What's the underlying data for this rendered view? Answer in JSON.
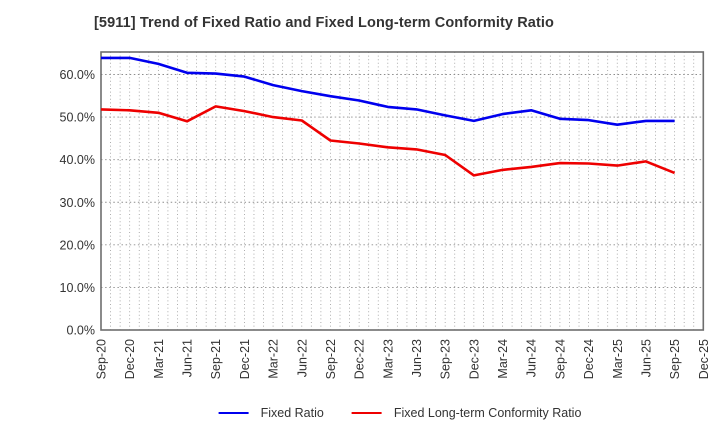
{
  "title": "[5911]  Trend of Fixed Ratio and Fixed Long-term Conformity Ratio",
  "legend": {
    "items": [
      {
        "label": "Fixed Ratio",
        "color": "#0000ee"
      },
      {
        "label": "Fixed Long-term Conformity Ratio",
        "color": "#ee0000"
      }
    ]
  },
  "chart_data": {
    "type": "line",
    "title": "[5911]  Trend of Fixed Ratio and Fixed Long-term Conformity Ratio",
    "categories": [
      "Sep-20",
      "Dec-20",
      "Mar-21",
      "Jun-21",
      "Sep-21",
      "Dec-21",
      "Mar-22",
      "Jun-22",
      "Sep-22",
      "Dec-22",
      "Mar-23",
      "Jun-23",
      "Sep-23",
      "Dec-23",
      "Mar-24",
      "Jun-24",
      "Sep-24",
      "Dec-24",
      "Mar-25",
      "Jun-25",
      "Sep-25",
      "Dec-25"
    ],
    "series": [
      {
        "name": "Fixed Ratio",
        "color": "#0000ee",
        "values": [
          63.9,
          63.9,
          62.5,
          60.4,
          60.2,
          59.5,
          57.5,
          56.1,
          54.9,
          53.9,
          52.4,
          51.8,
          50.4,
          49.1,
          50.7,
          51.6,
          49.6,
          49.3,
          48.2,
          49.1,
          49.1,
          null
        ]
      },
      {
        "name": "Fixed Long-term Conformity Ratio",
        "color": "#ee0000",
        "values": [
          51.8,
          51.6,
          51.0,
          49.0,
          52.5,
          51.4,
          50.0,
          49.2,
          44.5,
          43.8,
          42.9,
          42.4,
          41.1,
          36.3,
          37.6,
          38.3,
          39.2,
          39.1,
          38.6,
          39.6,
          36.9,
          null
        ]
      }
    ],
    "xlabel": "",
    "ylabel": "",
    "ylim": [
      0,
      65.3
    ],
    "y_ticks": [
      "0.0%",
      "10.0%",
      "20.0%",
      "30.0%",
      "40.0%",
      "50.0%",
      "60.0%"
    ],
    "y_tick_values": [
      0,
      10,
      20,
      30,
      40,
      50,
      60
    ],
    "minor_x_gridlines_per_interval": 3,
    "grid": "dotted",
    "legend_position": "bottom-center"
  }
}
